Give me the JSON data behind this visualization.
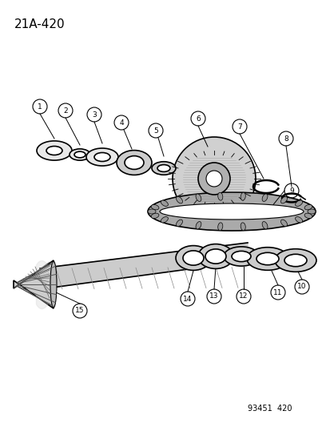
{
  "title": "21A-420",
  "footer": "93451  420",
  "bg_color": "#ffffff",
  "line_color": "#000000",
  "part_numbers": [
    1,
    2,
    3,
    4,
    5,
    6,
    7,
    8,
    9,
    10,
    11,
    12,
    13,
    14,
    15
  ],
  "fig_width": 4.14,
  "fig_height": 5.33,
  "dpi": 100
}
